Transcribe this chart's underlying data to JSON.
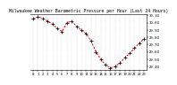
{
  "title": "Milwaukee Weather Barometric Pressure per Hour (Last 24 Hours)",
  "y_values": [
    30.05,
    30.08,
    30.06,
    30.02,
    29.98,
    29.92,
    29.88,
    30.0,
    30.02,
    29.95,
    29.9,
    29.85,
    29.75,
    29.6,
    29.5,
    29.42,
    29.38,
    29.4,
    29.45,
    29.52,
    29.58,
    29.65,
    29.72,
    29.78
  ],
  "x_labels": [
    "0",
    "1",
    "2",
    "3",
    "4",
    "5",
    "6",
    "7",
    "8",
    "9",
    "10",
    "11",
    "12",
    "13",
    "14",
    "15",
    "16",
    "17",
    "18",
    "19",
    "20",
    "21",
    "22",
    "23"
  ],
  "line_color": "#ff0000",
  "marker_color": "#000000",
  "bg_color": "#ffffff",
  "ylim_min": 29.35,
  "ylim_max": 30.12,
  "grid_color": "#aaaaaa",
  "title_fontsize": 3.5,
  "tick_fontsize": 2.8,
  "ytick_values": [
    29.4,
    29.5,
    29.6,
    29.7,
    29.8,
    29.9,
    30.0,
    30.1
  ]
}
